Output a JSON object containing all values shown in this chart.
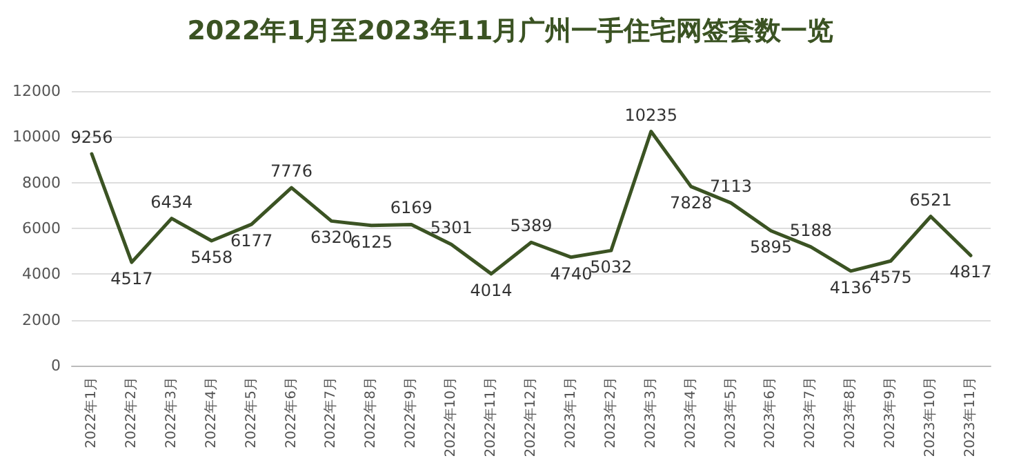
{
  "chart_data": {
    "type": "line",
    "title": "2022年1月至2023年11月广州一手住宅网签套数一览",
    "categories": [
      "2022年1月",
      "2022年2月",
      "2022年3月",
      "2022年4月",
      "2022年5月",
      "2022年6月",
      "2022年7月",
      "2022年8月",
      "2022年9月",
      "2022年10月",
      "2022年11月",
      "2022年12月",
      "2023年1月",
      "2023年2月",
      "2023年3月",
      "2023年4月",
      "2023年5月",
      "2023年6月",
      "2023年7月",
      "2023年8月",
      "2023年9月",
      "2023年10月",
      "2023年11月"
    ],
    "series": [
      {
        "color": "#3b5323",
        "values": [
          9256,
          4517,
          6434,
          5458,
          6177,
          7776,
          6320,
          6125,
          6169,
          5301,
          4014,
          5389,
          4740,
          5032,
          10235,
          7828,
          7113,
          5895,
          5188,
          4136,
          4575,
          6521,
          4817
        ]
      }
    ],
    "ylim": [
      0,
      12000
    ],
    "yticks": [
      0,
      2000,
      4000,
      6000,
      8000,
      10000,
      12000
    ],
    "grid": "y",
    "data_labels": true,
    "marker": "none",
    "line_style": "solid"
  }
}
